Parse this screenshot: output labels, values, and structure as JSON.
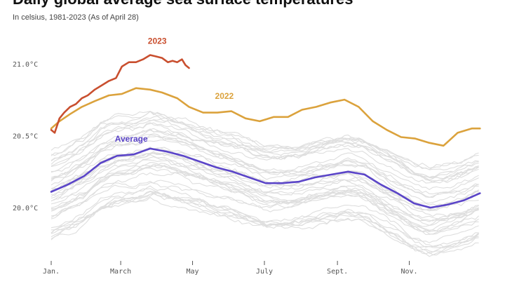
{
  "header": {
    "title": "Daily global average sea surface temperatures",
    "subtitle": "In celsius, 1981-2023 (As of April 28)"
  },
  "chart_data": {
    "type": "line",
    "title": "Daily global average sea surface temperatures",
    "subtitle": "In celsius, 1981-2023 (As of April 28)",
    "xlabel": "",
    "ylabel": "",
    "ylim": [
      19.65,
      21.15
    ],
    "x_domain_days": [
      0,
      365
    ],
    "x_ticks": [
      {
        "label": "Jan.",
        "day": 0
      },
      {
        "label": "March",
        "day": 59
      },
      {
        "label": "May",
        "day": 120
      },
      {
        "label": "July",
        "day": 181
      },
      {
        "label": "Sept.",
        "day": 243
      },
      {
        "label": "Nov.",
        "day": 304
      }
    ],
    "y_ticks": [
      {
        "label": "21.0°C",
        "value": 21.0
      },
      {
        "label": "20.5°C",
        "value": 20.5
      },
      {
        "label": "20.0°C",
        "value": 20.0
      }
    ],
    "grid": false,
    "colors": {
      "2023": "#c94f2f",
      "2022": "#dba23c",
      "Average": "#5a44c8",
      "past_years": "#dedede",
      "axis": "#555555"
    },
    "series": [
      {
        "name": "2023",
        "x": [
          "Jan. 1",
          "Jan. 4",
          "Jan. 8",
          "Jan. 12",
          "Jan. 17",
          "Jan. 22",
          "Jan. 27",
          "Feb. 1",
          "Feb. 7",
          "Feb. 13",
          "Feb. 19",
          "Feb. 25",
          "Mar. 2",
          "Mar. 8",
          "Mar. 14",
          "Mar. 20",
          "Mar. 26",
          "Mar. 31",
          "Apr. 5",
          "Apr. 10",
          "Apr. 14",
          "Apr. 18",
          "Apr. 22",
          "Apr. 25",
          "Apr. 28"
        ],
        "values": [
          20.54,
          20.52,
          20.62,
          20.66,
          20.7,
          20.72,
          20.76,
          20.78,
          20.82,
          20.85,
          20.88,
          20.9,
          20.98,
          21.01,
          21.01,
          21.03,
          21.06,
          21.05,
          21.04,
          21.01,
          21.02,
          21.01,
          21.03,
          20.99,
          20.97
        ]
      },
      {
        "name": "2022",
        "x": [
          "Jan. 1",
          "Jan. 8",
          "Jan. 17",
          "Jan. 27",
          "Feb. 7",
          "Feb. 19",
          "Mar. 2",
          "Mar. 14",
          "Mar. 26",
          "Apr. 5",
          "Apr. 18",
          "Apr. 28",
          "May 10",
          "May 22",
          "Jun. 3",
          "Jun. 15",
          "Jun. 27",
          "Jul. 9",
          "Jul. 21",
          "Aug. 2",
          "Aug. 14",
          "Aug. 26",
          "Sept. 7",
          "Sept. 19",
          "Oct. 1",
          "Oct. 13",
          "Oct. 25",
          "Nov. 6",
          "Nov. 18",
          "Nov. 30",
          "Dec. 12",
          "Dec. 24",
          "Dec. 31"
        ],
        "values": [
          20.55,
          20.6,
          20.65,
          20.7,
          20.74,
          20.78,
          20.79,
          20.83,
          20.82,
          20.8,
          20.76,
          20.7,
          20.66,
          20.66,
          20.67,
          20.62,
          20.6,
          20.63,
          20.63,
          20.68,
          20.7,
          20.73,
          20.75,
          20.7,
          20.6,
          20.54,
          20.49,
          20.48,
          20.45,
          20.43,
          20.52,
          20.55,
          20.55
        ]
      },
      {
        "name": "Average",
        "x": [
          "Jan. 1",
          "Jan. 15",
          "Jan. 29",
          "Feb. 12",
          "Feb. 26",
          "Mar. 12",
          "Mar. 26",
          "Apr. 9",
          "Apr. 23",
          "May 7",
          "May 21",
          "Jun. 4",
          "Jun. 18",
          "Jul. 2",
          "Jul. 16",
          "Jul. 30",
          "Aug. 13",
          "Aug. 27",
          "Sept. 10",
          "Sept. 24",
          "Oct. 8",
          "Oct. 22",
          "Nov. 5",
          "Nov. 19",
          "Dec. 3",
          "Dec. 17",
          "Dec. 31"
        ],
        "values": [
          20.11,
          20.16,
          20.22,
          20.31,
          20.36,
          20.37,
          20.41,
          20.39,
          20.36,
          20.32,
          20.28,
          20.25,
          20.21,
          20.17,
          20.17,
          20.18,
          20.21,
          20.23,
          20.25,
          20.23,
          20.16,
          20.1,
          20.03,
          20.0,
          20.02,
          20.05,
          20.1
        ]
      }
    ],
    "annotations": [
      {
        "text": "2023",
        "series": "2023"
      },
      {
        "text": "2022",
        "series": "2022"
      },
      {
        "text": "Average",
        "series": "Average"
      }
    ]
  }
}
